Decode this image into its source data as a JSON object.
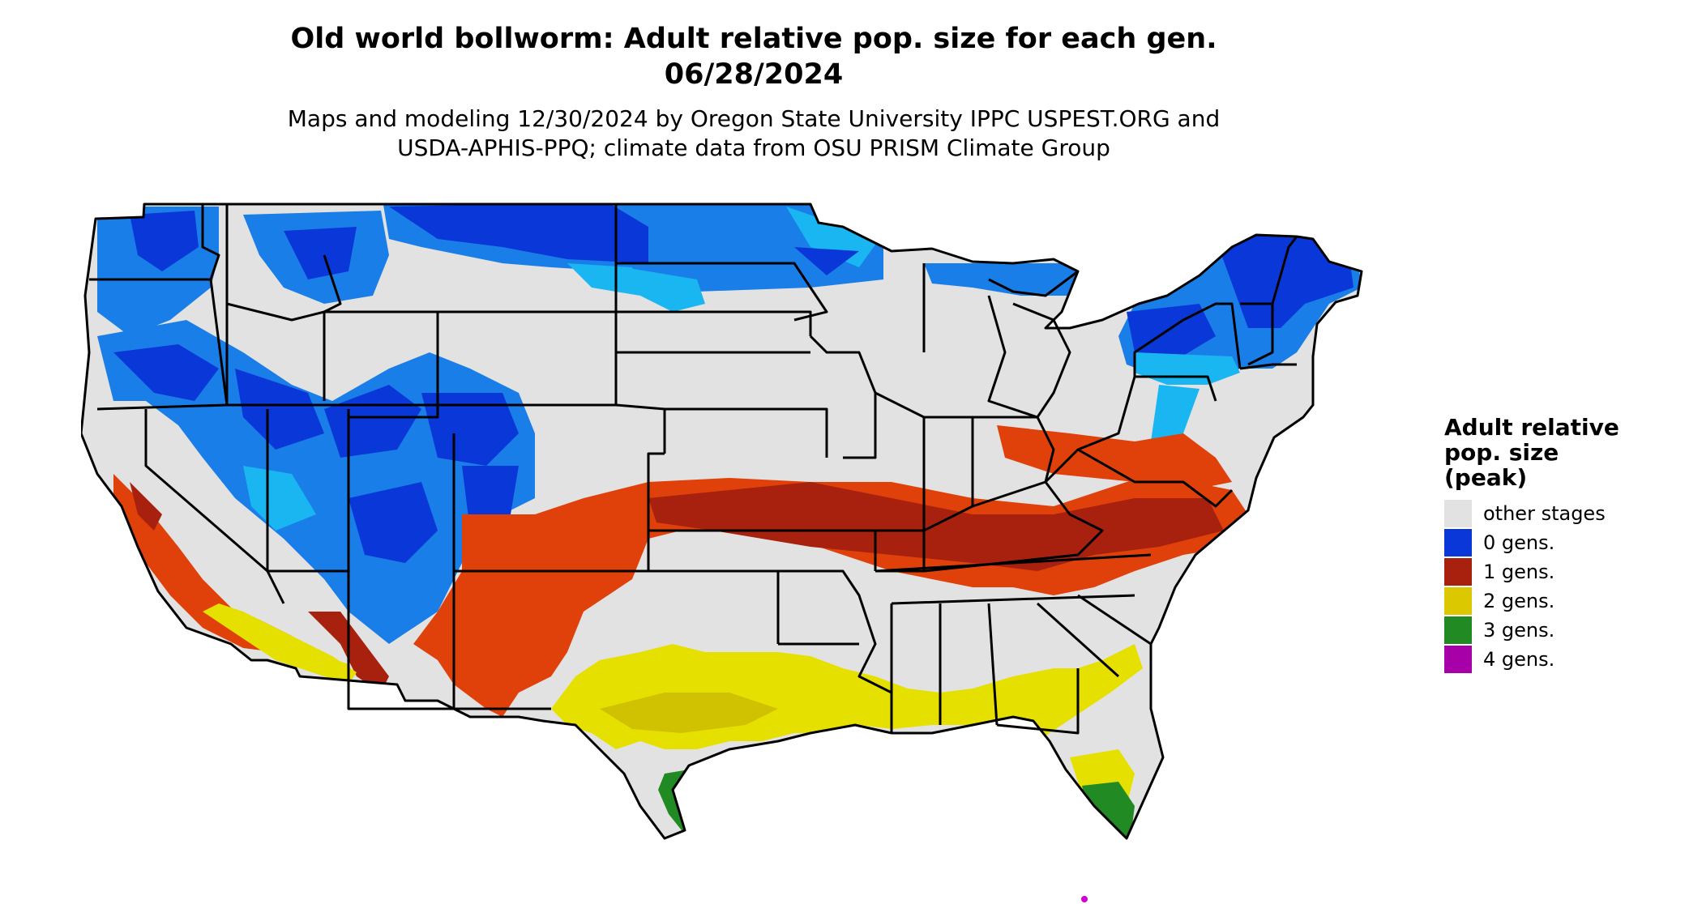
{
  "title": {
    "line1": "Old world bollworm: Adult relative pop. size for each gen.",
    "line2": "06/28/2024"
  },
  "subtitle": {
    "line1": "Maps and modeling 12/30/2024 by Oregon State University IPPC USPEST.ORG and",
    "line2": "USDA-APHIS-PPQ; climate data from OSU PRISM Climate Group"
  },
  "legend": {
    "title_lines": [
      "Adult relative",
      "pop. size",
      "(peak)"
    ],
    "items": [
      {
        "label": "other stages",
        "color": "#e2e2e2"
      },
      {
        "label": "0 gens.",
        "color": "#0a38d8"
      },
      {
        "label": "1 gens.",
        "color": "#a8200e"
      },
      {
        "label": "2 gens.",
        "color": "#dcc800"
      },
      {
        "label": "3 gens.",
        "color": "#228a22"
      },
      {
        "label": "4 gens.",
        "color": "#a800a8"
      }
    ]
  },
  "map_colors": {
    "background": "#e2e2e2",
    "zero_dark": "#0a38d8",
    "zero_mid": "#1a7ee8",
    "zero_light": "#19b6f2",
    "one_dark": "#a8200e",
    "one_light": "#e0400a",
    "two": "#e6e000",
    "two_dark": "#d0c200",
    "three": "#228a22",
    "four": "#d000d0",
    "border": "#000000"
  }
}
